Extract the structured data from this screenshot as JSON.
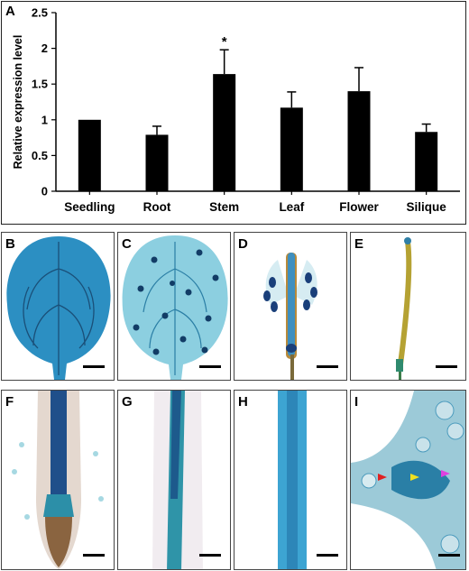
{
  "panels": {
    "A": "A",
    "B": "B",
    "C": "C",
    "D": "D",
    "E": "E",
    "F": "F",
    "G": "G",
    "H": "H",
    "I": "I"
  },
  "chart_data": {
    "type": "bar",
    "categories": [
      "Seedling",
      "Root",
      "Stem",
      "Leaf",
      "Flower",
      "Silique"
    ],
    "values": [
      1.0,
      0.79,
      1.64,
      1.17,
      1.4,
      0.83
    ],
    "errors": [
      0.01,
      0.12,
      0.34,
      0.22,
      0.33,
      0.11
    ],
    "annotations": [
      "",
      "",
      "*",
      "",
      "",
      ""
    ],
    "ylabel": "Relative expression level",
    "xlabel": "",
    "ylim": [
      0,
      2.5
    ],
    "yticks": [
      "0",
      "0.5",
      "1",
      "1.5",
      "2",
      "2.5"
    ],
    "bar_color": "#000000",
    "grid": false
  },
  "micrograph_colors": {
    "gus_stain": "#1f7fb0",
    "tissue_pale": "#c9e4ec",
    "background": "#ffffff"
  }
}
